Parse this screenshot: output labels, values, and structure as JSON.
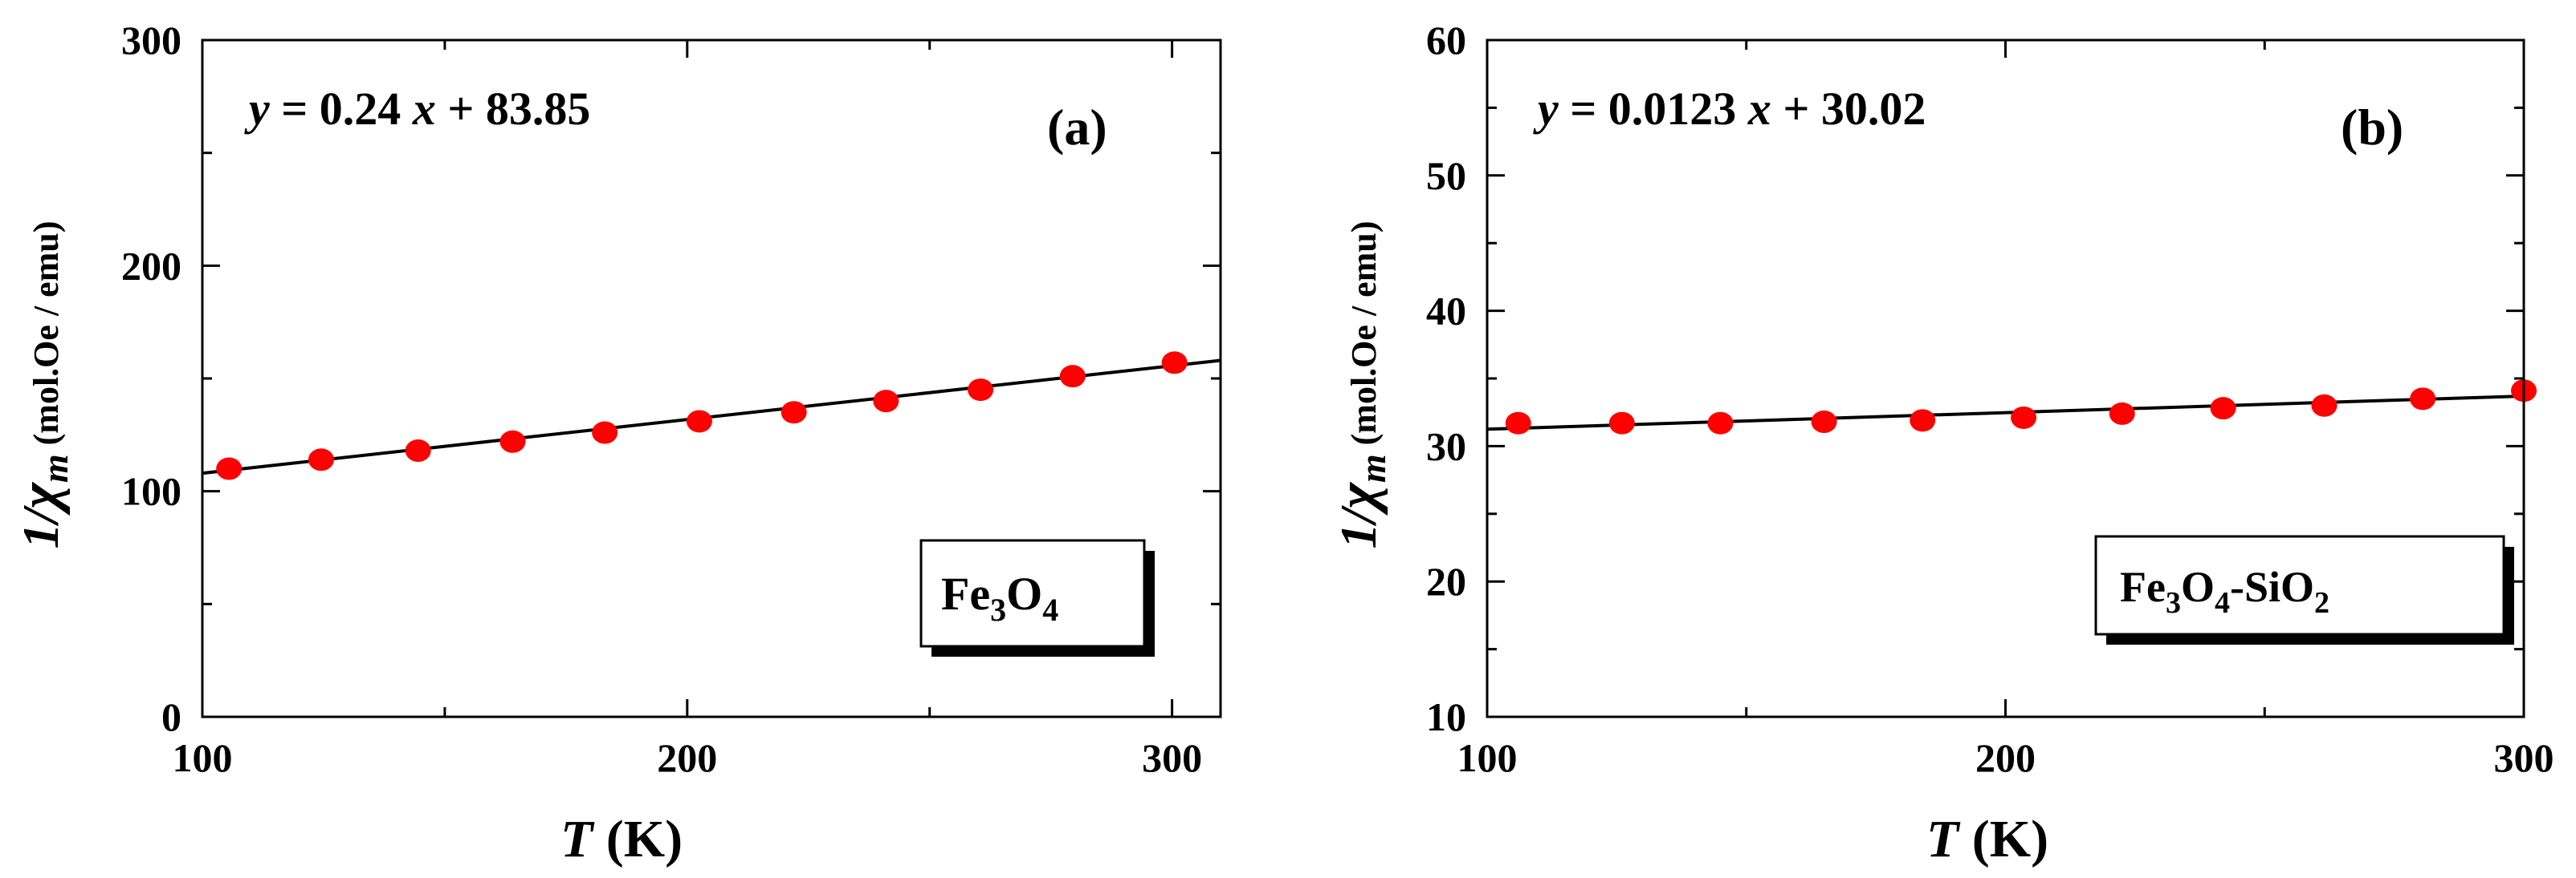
{
  "colors": {
    "marker": "#ff0000",
    "line": "#000000",
    "axis": "#000000"
  },
  "chart_data": [
    {
      "panel_id": "a",
      "type": "scatter",
      "panel_label": "(a)",
      "sample_label": {
        "prefix": "Fe",
        "sub1": "3",
        "mid": "O",
        "sub2": "4",
        "suffix": ""
      },
      "equation": {
        "y": "y",
        "eq": " = 0.24 ",
        "x": "x",
        "rest": " + 83.85"
      },
      "xlabel": {
        "var": "T",
        "unit": " (K)"
      },
      "ylabel": {
        "prefix": "1/",
        "chi": "χ",
        "sub": "m",
        "unit": " (mol.Oe / emu)"
      },
      "xlim": [
        100,
        310
      ],
      "ylim": [
        0,
        300
      ],
      "xticks": [
        100,
        200,
        300
      ],
      "yticks": [
        0,
        100,
        200,
        300
      ],
      "x": [
        105.5,
        124.5,
        144.5,
        164,
        183,
        202.5,
        222,
        241,
        260.5,
        279.5,
        300.5
      ],
      "y": [
        110,
        114,
        118,
        122,
        126,
        131,
        135,
        140,
        145,
        151,
        157
      ],
      "fit": {
        "x": [
          100,
          310
        ],
        "y": [
          108,
          158
        ]
      }
    },
    {
      "panel_id": "b",
      "type": "scatter",
      "panel_label": "(b)",
      "sample_label": {
        "prefix": "Fe",
        "sub1": "3",
        "mid": "O",
        "sub2": "4",
        "suffix": "-SiO",
        "sub3": "2"
      },
      "equation": {
        "y": "y",
        "eq": " = 0.0123 ",
        "x": "x",
        "rest": " + 30.02"
      },
      "xlabel": {
        "var": "T",
        "unit": " (K)"
      },
      "ylabel": {
        "prefix": "1/",
        "chi": "χ",
        "sub": "m",
        "unit": " (mol.Oe / emu)"
      },
      "xlim": [
        100,
        300
      ],
      "ylim": [
        10,
        60
      ],
      "xticks": [
        100,
        200,
        300
      ],
      "yticks": [
        10,
        20,
        30,
        40,
        50,
        60
      ],
      "x": [
        106,
        126,
        145,
        165,
        184,
        203.5,
        222.5,
        242,
        261.5,
        280.5,
        300
      ],
      "y": [
        31.7,
        31.7,
        31.7,
        31.8,
        31.9,
        32.1,
        32.4,
        32.8,
        33.0,
        33.5,
        34.1
      ],
      "fit": {
        "x": [
          100,
          300
        ],
        "y": [
          31.25,
          33.7
        ]
      }
    }
  ]
}
